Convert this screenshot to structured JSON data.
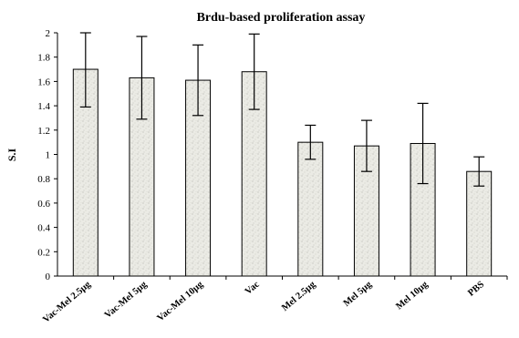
{
  "chart_data": {
    "type": "bar",
    "title": "Brdu-based proliferation assay",
    "xlabel": "",
    "ylabel": "S.I",
    "ylim": [
      0,
      2
    ],
    "yticks": [
      "0",
      "0.2",
      "0.4",
      "0.6",
      "0.8",
      "1",
      "1.2",
      "1.4",
      "1.6",
      "1.8",
      "2"
    ],
    "categories": [
      "Vac-Mel 2.5µg",
      "Vac-Mel 5µg",
      "Vac-Mel 10µg",
      "Vac",
      "Mel 2.5µg",
      "Mel 5µg",
      "Mel 10µg",
      "PBS"
    ],
    "values": [
      1.7,
      1.63,
      1.61,
      1.68,
      1.1,
      1.07,
      1.09,
      0.86
    ],
    "errors": [
      0.31,
      0.34,
      0.29,
      0.31,
      0.14,
      0.21,
      0.33,
      0.12
    ],
    "grid": false,
    "legend": "none",
    "bar_color": "#e6e6e0"
  }
}
